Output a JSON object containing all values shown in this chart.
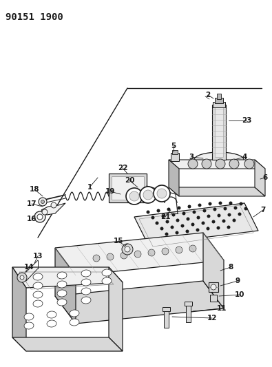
{
  "title": "90151 1900",
  "bg_color": "#ffffff",
  "fig_width": 3.95,
  "fig_height": 5.33,
  "dpi": 100,
  "line_color": "#1a1a1a",
  "fill_light": "#f0f0f0",
  "fill_mid": "#d8d8d8",
  "fill_dark": "#b8b8b8"
}
